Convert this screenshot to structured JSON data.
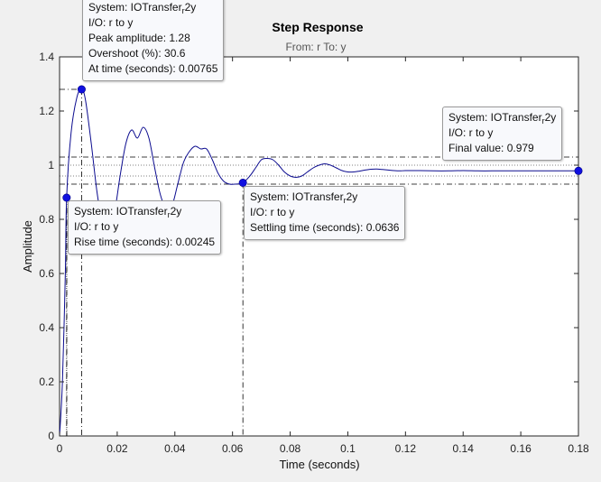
{
  "chart_data": {
    "type": "line",
    "title": "Step Response",
    "subtitle": "From: r  To: y",
    "xlabel": "Time (seconds)",
    "ylabel": "Amplitude",
    "xlim": [
      0,
      0.18
    ],
    "ylim": [
      0,
      1.4
    ],
    "xticks": [
      "0",
      "0.02",
      "0.04",
      "0.06",
      "0.08",
      "0.1",
      "0.12",
      "0.14",
      "0.16",
      "0.18"
    ],
    "yticks": [
      "0",
      "0.2",
      "0.4",
      "0.6",
      "0.8",
      "1",
      "1.2",
      "1.4"
    ],
    "grid": false,
    "series": [
      {
        "color": "#0b0b8f",
        "x": [
          0,
          0.001,
          0.002,
          0.00245,
          0.004,
          0.006,
          0.00765,
          0.009,
          0.011,
          0.013,
          0.015,
          0.017,
          0.019,
          0.021,
          0.023,
          0.025,
          0.027,
          0.029,
          0.031,
          0.033,
          0.035,
          0.037,
          0.039,
          0.041,
          0.043,
          0.045,
          0.047,
          0.049,
          0.051,
          0.053,
          0.055,
          0.057,
          0.059,
          0.061,
          0.0636,
          0.066,
          0.068,
          0.07,
          0.072,
          0.074,
          0.076,
          0.078,
          0.08,
          0.082,
          0.084,
          0.086,
          0.088,
          0.09,
          0.092,
          0.094,
          0.096,
          0.098,
          0.1,
          0.102,
          0.104,
          0.106,
          0.108,
          0.11,
          0.112,
          0.114,
          0.116,
          0.118,
          0.12,
          0.125,
          0.13,
          0.135,
          0.14,
          0.145,
          0.15,
          0.155,
          0.16,
          0.165,
          0.17,
          0.175,
          0.18
        ],
        "y": [
          0,
          0.2,
          0.6,
          0.88,
          1.12,
          1.25,
          1.28,
          1.24,
          1.08,
          0.9,
          0.78,
          0.75,
          0.82,
          0.96,
          1.08,
          1.13,
          1.1,
          1.14,
          1.1,
          0.99,
          0.89,
          0.84,
          0.85,
          0.93,
          1.01,
          1.05,
          1.07,
          1.06,
          1.06,
          1.02,
          0.97,
          0.94,
          0.93,
          0.93,
          0.935,
          0.96,
          0.99,
          1.02,
          1.025,
          1.02,
          1.0,
          0.975,
          0.96,
          0.955,
          0.96,
          0.975,
          0.99,
          1.0,
          1.005,
          1.0,
          0.99,
          0.98,
          0.975,
          0.975,
          0.978,
          0.982,
          0.985,
          0.986,
          0.984,
          0.982,
          0.98,
          0.979,
          0.98,
          0.98,
          0.979,
          0.979,
          0.98,
          0.979,
          0.979,
          0.979,
          0.979,
          0.979,
          0.979,
          0.979,
          0.979
        ]
      }
    ],
    "markers": [
      {
        "name": "peak",
        "x": 0.00765,
        "y": 1.28
      },
      {
        "name": "rise",
        "x": 0.00245,
        "y": 0.88
      },
      {
        "name": "settling",
        "x": 0.0636,
        "y": 0.935
      },
      {
        "name": "final",
        "x": 0.18,
        "y": 0.979
      }
    ],
    "reference_lines": {
      "settling_band": [
        0.96,
        1.0
      ],
      "rise_band": [
        1.03,
        0.93
      ],
      "final_value": 0.979,
      "peak_value": 1.28
    }
  },
  "tooltips": {
    "peak": {
      "system_prefix": "System: IOTransfer",
      "system_sub": "r",
      "system_suffix": "2y",
      "io": "I/O: r to y",
      "lines": [
        "Peak amplitude: 1.28",
        "Overshoot (%): 30.6",
        "At time (seconds): 0.00765"
      ]
    },
    "rise": {
      "system_prefix": "System: IOTransfer",
      "system_sub": "r",
      "system_suffix": "2y",
      "io": "I/O: r to y",
      "lines": [
        "Rise time (seconds): 0.00245"
      ]
    },
    "settling": {
      "system_prefix": "System: IOTransfer",
      "system_sub": "r",
      "system_suffix": "2y",
      "io": "I/O: r to y",
      "lines": [
        "Settling time (seconds): 0.0636"
      ]
    },
    "final": {
      "system_prefix": "System: IOTransfer",
      "system_sub": "r",
      "system_suffix": "2y",
      "io": "I/O: r to y",
      "lines": [
        "Final value: 0.979"
      ]
    }
  }
}
